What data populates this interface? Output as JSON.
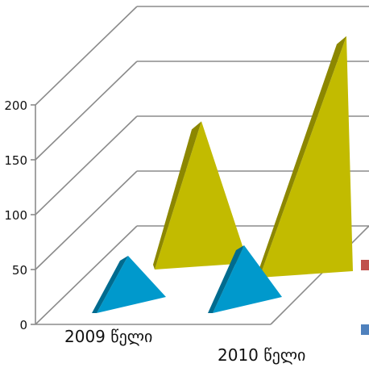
{
  "chart_data": {
    "type": "bar",
    "style": "3d-pyramid",
    "categories": [
      "2009 წელი",
      "2010 წელი"
    ],
    "series": [
      {
        "values": [
          55,
          65
        ],
        "color": "#b9b400"
      },
      {
        "values": [
          135,
          220
        ],
        "color": "#c2bb00"
      }
    ],
    "front_series_color": "#0099cc",
    "y_ticks": [
      "0",
      "50",
      "100",
      "150",
      "200"
    ],
    "ylim": [
      0,
      200
    ],
    "grid": true,
    "legend": {
      "position": "right",
      "colors": [
        "#c0504d",
        "#4f81bd"
      ]
    }
  }
}
